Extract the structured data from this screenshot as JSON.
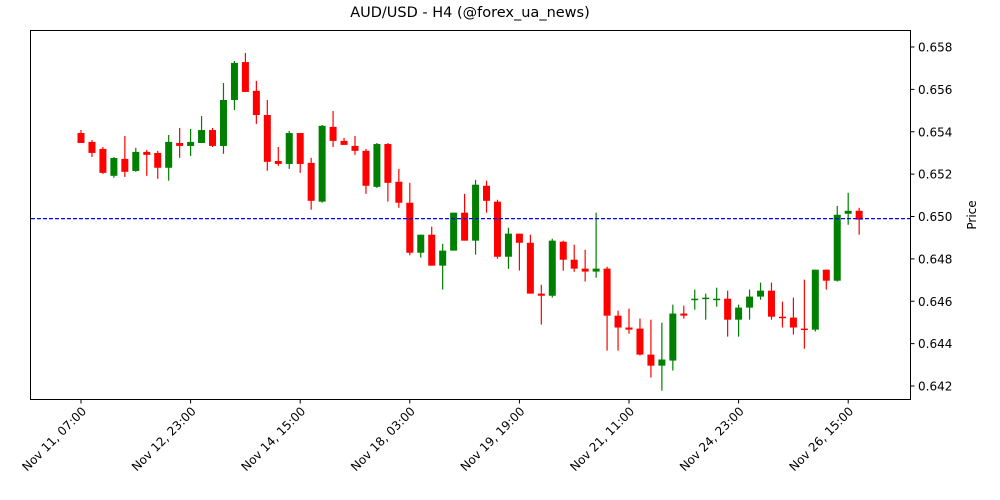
{
  "chart_data": {
    "type": "candlestick",
    "title": "AUD/USD - H4 (@forex_ua_news)",
    "xlabel": "",
    "ylabel": "Price",
    "ylim": [
      0.6414,
      0.6588
    ],
    "y_ticks": [
      "0.642",
      "0.644",
      "0.646",
      "0.648",
      "0.650",
      "0.652",
      "0.654",
      "0.656",
      "0.658"
    ],
    "x_ticks": [
      {
        "label": "Nov 11, 07:00",
        "index": 0
      },
      {
        "label": "Nov 12, 23:00",
        "index": 10
      },
      {
        "label": "Nov 14, 15:00",
        "index": 20
      },
      {
        "label": "Nov 18, 03:00",
        "index": 30
      },
      {
        "label": "Nov 19, 19:00",
        "index": 40
      },
      {
        "label": "Nov 21, 11:00",
        "index": 50
      },
      {
        "label": "Nov 24, 23:00",
        "index": 60
      },
      {
        "label": "Nov 26, 15:00",
        "index": 70
      }
    ],
    "hline": {
      "value": 0.6499,
      "color": "#0000ff",
      "style": "dashed"
    },
    "colors": {
      "up": "#008000",
      "down": "#ff0000"
    },
    "grid": false,
    "candles_pixel_note": "OHLC values in price units",
    "candles": [
      [
        0.65394,
        0.65408,
        0.65347,
        0.65347
      ],
      [
        0.65352,
        0.65361,
        0.65281,
        0.653
      ],
      [
        0.65319,
        0.65328,
        0.65201,
        0.65206
      ],
      [
        0.65192,
        0.65281,
        0.65183,
        0.65276
      ],
      [
        0.65272,
        0.6538,
        0.65187,
        0.65211
      ],
      [
        0.65215,
        0.65324,
        0.65211,
        0.65305
      ],
      [
        0.65305,
        0.65314,
        0.65192,
        0.65291
      ],
      [
        0.653,
        0.6531,
        0.65178,
        0.6523
      ],
      [
        0.6523,
        0.65385,
        0.65169,
        0.65352
      ],
      [
        0.65347,
        0.65418,
        0.65277,
        0.65333
      ],
      [
        0.65333,
        0.65413,
        0.65286,
        0.65352
      ],
      [
        0.65347,
        0.65474,
        0.65347,
        0.65408
      ],
      [
        0.65408,
        0.65418,
        0.65328,
        0.65333
      ],
      [
        0.65333,
        0.6563,
        0.65296,
        0.6555
      ],
      [
        0.6555,
        0.65734,
        0.65503,
        0.65725
      ],
      [
        0.65729,
        0.65772,
        0.65587,
        0.65588
      ],
      [
        0.65593,
        0.6564,
        0.65437,
        0.65479
      ],
      [
        0.65479,
        0.6555,
        0.65216,
        0.65258
      ],
      [
        0.65262,
        0.65328,
        0.65239,
        0.65248
      ],
      [
        0.65248,
        0.65404,
        0.65225,
        0.65394
      ],
      [
        0.65394,
        0.65394,
        0.65206,
        0.65248
      ],
      [
        0.65253,
        0.65277,
        0.65032,
        0.65074
      ],
      [
        0.6507,
        0.65432,
        0.65065,
        0.65428
      ],
      [
        0.65423,
        0.65498,
        0.65328,
        0.65357
      ],
      [
        0.65357,
        0.65371,
        0.65338,
        0.65338
      ],
      [
        0.65333,
        0.6538,
        0.65291,
        0.6531
      ],
      [
        0.6531,
        0.65319,
        0.65107,
        0.65145
      ],
      [
        0.6514,
        0.65347,
        0.65135,
        0.65342
      ],
      [
        0.65342,
        0.65347,
        0.6507,
        0.65159
      ],
      [
        0.65164,
        0.65225,
        0.65041,
        0.65065
      ],
      [
        0.65065,
        0.65159,
        0.64817,
        0.64829
      ],
      [
        0.64829,
        0.64914,
        0.64806,
        0.64914
      ],
      [
        0.64914,
        0.64952,
        0.64768,
        0.64768
      ],
      [
        0.64768,
        0.64871,
        0.64655,
        0.64839
      ],
      [
        0.64839,
        0.65018,
        0.64839,
        0.65018
      ],
      [
        0.65018,
        0.65107,
        0.64886,
        0.64886
      ],
      [
        0.64886,
        0.65173,
        0.6482,
        0.6515
      ],
      [
        0.65145,
        0.65169,
        0.65018,
        0.65074
      ],
      [
        0.6507,
        0.65079,
        0.64801,
        0.6481
      ],
      [
        0.6481,
        0.64947,
        0.64753,
        0.64919
      ],
      [
        0.64919,
        0.64919,
        0.64745,
        0.64876
      ],
      [
        0.64876,
        0.64914,
        0.64636,
        0.64636
      ],
      [
        0.64636,
        0.64678,
        0.6449,
        0.64626
      ],
      [
        0.64626,
        0.64895,
        0.64617,
        0.64886
      ],
      [
        0.64881,
        0.64886,
        0.64744,
        0.64796
      ],
      [
        0.64796,
        0.64867,
        0.64739,
        0.64754
      ],
      [
        0.64754,
        0.64843,
        0.64693,
        0.6474
      ],
      [
        0.6474,
        0.65018,
        0.64711,
        0.64754
      ],
      [
        0.64754,
        0.64763,
        0.64367,
        0.64532
      ],
      [
        0.64532,
        0.64556,
        0.64367,
        0.64476
      ],
      [
        0.64476,
        0.64565,
        0.64447,
        0.64466
      ],
      [
        0.64471,
        0.64518,
        0.64344,
        0.64348
      ],
      [
        0.64348,
        0.64513,
        0.6424,
        0.64296
      ],
      [
        0.64296,
        0.64499,
        0.64178,
        0.64325
      ],
      [
        0.6432,
        0.64584,
        0.64273,
        0.64542
      ],
      [
        0.64542,
        0.64579,
        0.64518,
        0.64532
      ],
      [
        0.64612,
        0.64655,
        0.6456,
        0.64612
      ],
      [
        0.64612,
        0.64636,
        0.64513,
        0.64617
      ],
      [
        0.64612,
        0.64664,
        0.64574,
        0.64612
      ],
      [
        0.64612,
        0.6465,
        0.64433,
        0.64513
      ],
      [
        0.64513,
        0.64584,
        0.64433,
        0.6457
      ],
      [
        0.6457,
        0.64655,
        0.64513,
        0.64622
      ],
      [
        0.64622,
        0.64688,
        0.64607,
        0.6465
      ],
      [
        0.6465,
        0.64688,
        0.64513,
        0.64527
      ],
      [
        0.64527,
        0.64598,
        0.64476,
        0.64523
      ],
      [
        0.64523,
        0.64617,
        0.64443,
        0.64476
      ],
      [
        0.64471,
        0.64702,
        0.64376,
        0.64466
      ],
      [
        0.64466,
        0.64749,
        0.64457,
        0.64749
      ],
      [
        0.64749,
        0.64749,
        0.64655,
        0.64697
      ],
      [
        0.64697,
        0.6505,
        0.64693,
        0.65008
      ],
      [
        0.65013,
        0.65112,
        0.64961,
        0.65027
      ],
      [
        0.65027,
        0.65041,
        0.64914,
        0.64985
      ]
    ]
  }
}
